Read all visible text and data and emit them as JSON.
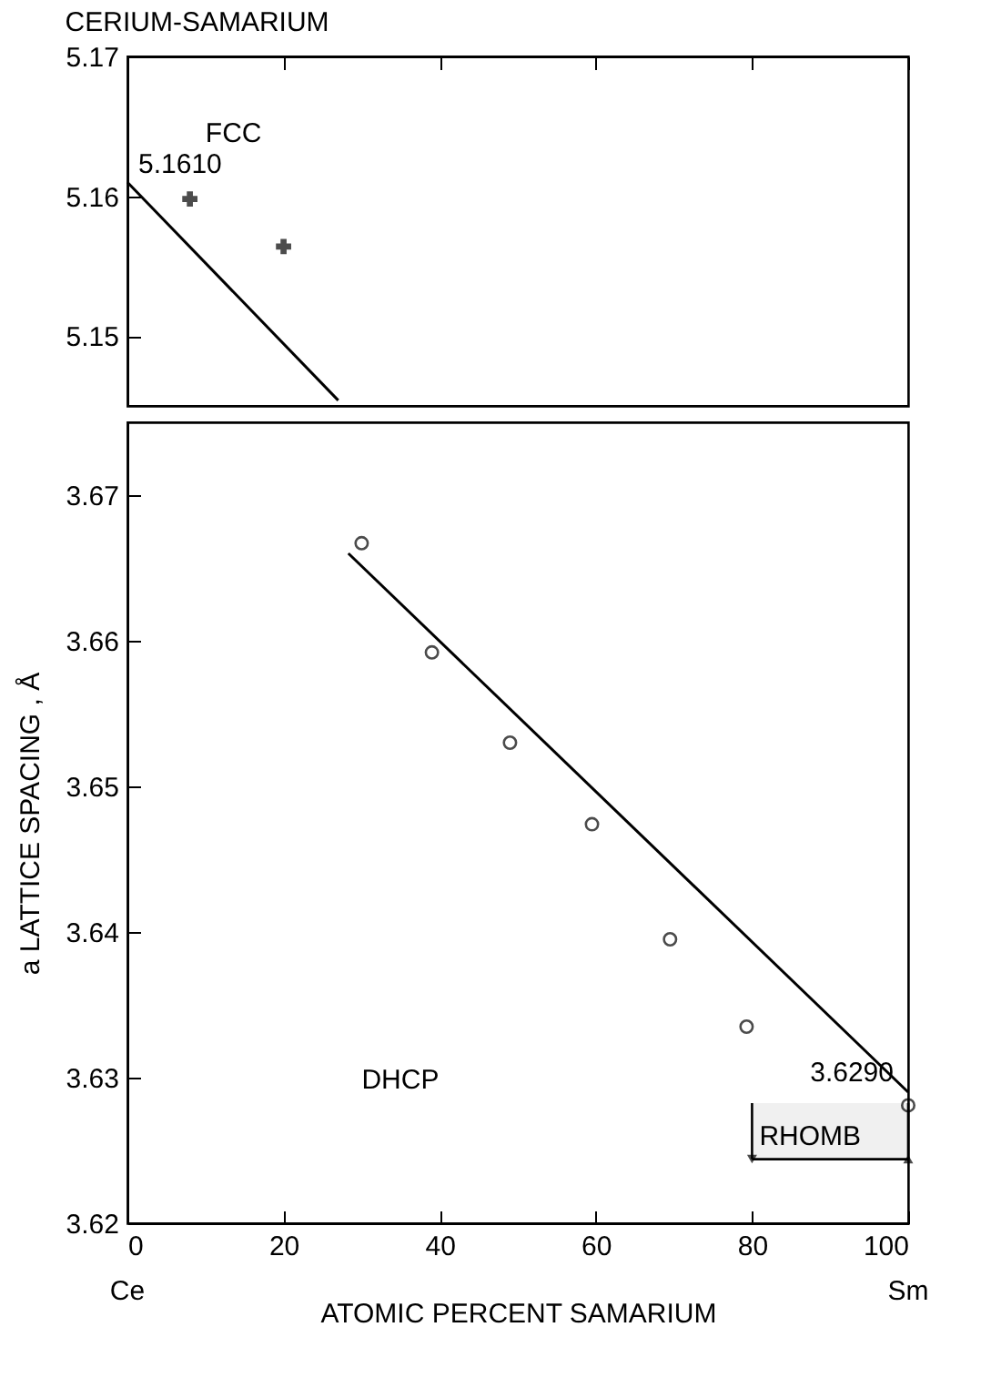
{
  "chart_data": [
    {
      "type": "scatter",
      "title": "CERIUM-SAMARIUM",
      "xlim": [
        0,
        100
      ],
      "xticks": [
        0,
        20,
        40,
        60,
        80,
        100
      ],
      "ylim": [
        5.145,
        5.17
      ],
      "yticks": [
        5.15,
        5.16,
        5.17
      ],
      "tick_labels": "y",
      "grid": false,
      "series": [
        {
          "marker": "cross",
          "color": "#000000",
          "x": [
            8,
            20
          ],
          "values": [
            5.1598,
            5.1564
          ]
        },
        {
          "type": "line",
          "color": "#000000",
          "x": [
            0,
            27
          ],
          "values": [
            5.161,
            5.1454
          ]
        }
      ],
      "annotations": [
        "FCC",
        {
          "text": "5.1610",
          "x": 0,
          "y": 5.161
        }
      ]
    },
    {
      "type": "scatter",
      "xlabel": "ATOMIC PERCENT SAMARIUM",
      "ylabel": "a LATTICE SPACING , Å",
      "xlim": [
        0,
        100
      ],
      "xticks": [
        0,
        20,
        40,
        60,
        80,
        100
      ],
      "ylim": [
        3.62,
        3.675
      ],
      "yticks": [
        3.62,
        3.63,
        3.64,
        3.65,
        3.66,
        3.67
      ],
      "grid": false,
      "series": [
        {
          "marker": "circle",
          "color": "#000000",
          "x": [
            30,
            39,
            49,
            59.5,
            69.5,
            79.3,
            100
          ],
          "values": [
            3.6667,
            3.6592,
            3.653,
            3.6474,
            3.6395,
            3.6335,
            3.6281
          ]
        },
        {
          "type": "line",
          "color": "#000000",
          "x": [
            28.3,
            100
          ],
          "values": [
            3.666,
            3.629
          ]
        }
      ],
      "bands": [
        {
          "axis": "x",
          "from": 80,
          "to": 100,
          "label": "RHOMB"
        }
      ],
      "annotations": [
        "DHCP",
        {
          "text": "3.6290",
          "x": 100,
          "y": 3.629
        },
        "Ce",
        "Sm"
      ]
    }
  ]
}
